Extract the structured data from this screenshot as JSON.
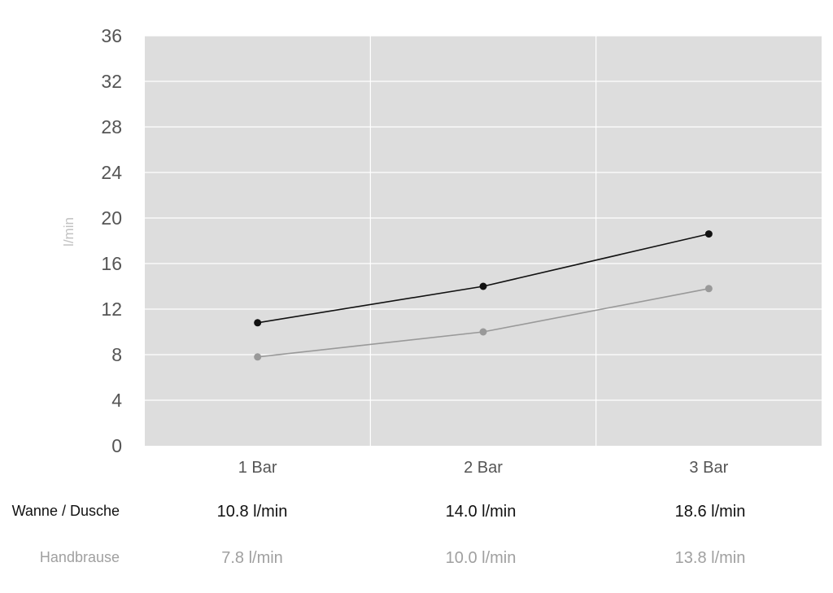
{
  "chart_data": {
    "type": "line",
    "categories": [
      "1 Bar",
      "2 Bar",
      "3 Bar"
    ],
    "ylabel": "l/min",
    "ylim": [
      0,
      36
    ],
    "yticks": [
      0,
      4,
      8,
      12,
      16,
      20,
      24,
      28,
      32,
      36
    ],
    "grid": true,
    "series": [
      {
        "name": "Wanne / Dusche",
        "values": [
          10.8,
          14.0,
          18.6
        ],
        "color": "#111111"
      },
      {
        "name": "Handbrause",
        "values": [
          7.8,
          10.0,
          13.8
        ],
        "color": "#999999"
      }
    ],
    "plot_background": "#dddddd"
  },
  "table": {
    "rows": [
      {
        "label": "Wanne / Dusche",
        "cells": [
          "10.8 l/min",
          "14.0 l/min",
          "18.6 l/min"
        ]
      },
      {
        "label": "Handbrause",
        "cells": [
          "7.8 l/min",
          "10.0 l/min",
          "13.8 l/min"
        ]
      }
    ]
  }
}
